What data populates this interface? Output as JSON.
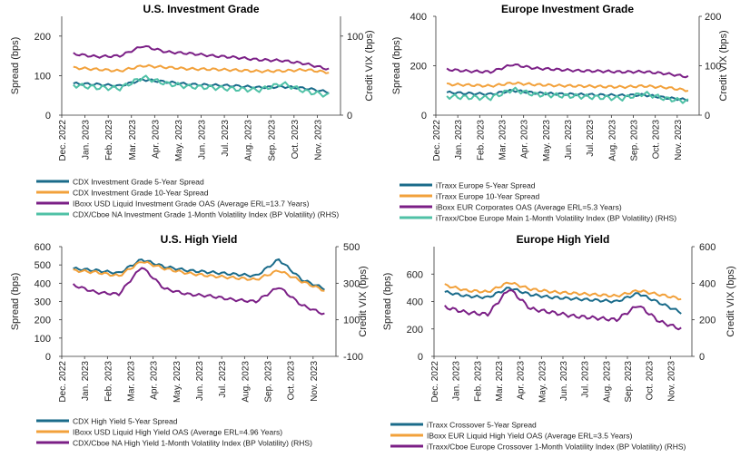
{
  "colors": {
    "teal_dark": "#1a6b8a",
    "orange": "#f2a13b",
    "purple": "#7b1f86",
    "teal_light": "#4fc1a6",
    "axis": "#333333"
  },
  "chart_data": [
    {
      "type": "line",
      "title": "U.S. Investment Grade",
      "ylabel": "Spread (bps)",
      "y2label": "Credit VIX (bps)",
      "ylim": [
        0,
        250
      ],
      "yticks": [
        0,
        100,
        200
      ],
      "y2lim": [
        0,
        125
      ],
      "y2ticks": [
        0,
        100
      ],
      "x": [
        "Dec. 2022",
        "Jan. 2023",
        "Feb. 2023",
        "Mar. 2023",
        "Apr. 2023",
        "May. 2023",
        "Jun. 2023",
        "Jul. 2023",
        "Aug. 2023",
        "Sep. 2023",
        "Oct. 2023",
        "Nov. 2023"
      ],
      "legend_position": "below",
      "series": [
        {
          "name": "CDX Investment Grade 5-Year Spread",
          "color": "teal_dark",
          "axis": "left",
          "values": [
            80,
            78,
            74,
            90,
            84,
            78,
            76,
            74,
            70,
            72,
            68,
            58
          ]
        },
        {
          "name": "CDX Investment Grade 10-Year Spread",
          "color": "orange",
          "axis": "left",
          "values": [
            120,
            116,
            112,
            125,
            121,
            117,
            116,
            114,
            111,
            112,
            115,
            108
          ]
        },
        {
          "name": "IBoxx USD Liquid Investment Grade OAS (Average ERL=13.7 Years)",
          "color": "purple",
          "axis": "left",
          "values": [
            155,
            148,
            150,
            175,
            160,
            156,
            150,
            146,
            140,
            138,
            130,
            116
          ]
        },
        {
          "name": "CDX/Cboe NA Investment Grade 1-Month Volatility Index (BP Volatility) (RHS)",
          "color": "teal_light",
          "axis": "right",
          "values": [
            38,
            35,
            34,
            48,
            40,
            36,
            35,
            33,
            32,
            40,
            30,
            25
          ]
        }
      ]
    },
    {
      "type": "line",
      "title": "Europe Investment Grade",
      "ylabel": "Spread (bps)",
      "y2label": "Credit VIX (bps)",
      "ylim": [
        0,
        400
      ],
      "yticks": [
        0,
        200,
        400
      ],
      "y2lim": [
        0,
        200
      ],
      "y2ticks": [
        0,
        100,
        200
      ],
      "x": [
        "Dec. 2022",
        "Jan. 2023",
        "Feb. 2023",
        "Mar. 2023",
        "Apr. 2023",
        "May. 2023",
        "Jun. 2023",
        "Jul. 2023",
        "Aug. 2023",
        "Sep. 2023",
        "Oct. 2023",
        "Nov. 2023"
      ],
      "legend_position": "below",
      "series": [
        {
          "name": "iTraxx Europe 5-Year Spread",
          "color": "teal_dark",
          "axis": "left",
          "values": [
            92,
            88,
            85,
            100,
            90,
            86,
            84,
            82,
            80,
            82,
            70,
            62
          ]
        },
        {
          "name": "iTraxx Europe 10-Year Spread",
          "color": "orange",
          "axis": "left",
          "values": [
            125,
            122,
            118,
            130,
            124,
            120,
            118,
            116,
            114,
            118,
            112,
            100
          ]
        },
        {
          "name": "iBoxx EUR Corporates OAS (Average ERL=5.3 Years)",
          "color": "purple",
          "axis": "left",
          "values": [
            185,
            178,
            175,
            205,
            190,
            185,
            180,
            178,
            175,
            176,
            168,
            155
          ]
        },
        {
          "name": "iTraxx/Cboe Europe Main 1-Month Volatility Index (BP Volatility) (RHS)",
          "color": "teal_light",
          "axis": "right",
          "values": [
            38,
            36,
            35,
            52,
            42,
            40,
            38,
            36,
            34,
            44,
            33,
            28
          ]
        }
      ]
    },
    {
      "type": "line",
      "title": "U.S. High Yield",
      "ylabel": "Spread (bps)",
      "y2label": "Credit VIX (bps)",
      "ylim": [
        0,
        600
      ],
      "yticks": [
        0,
        100,
        200,
        300,
        400,
        500,
        600
      ],
      "y2lim": [
        -100,
        500
      ],
      "y2ticks": [
        -100,
        100,
        300,
        500
      ],
      "x": [
        "Dec. 2022",
        "Jan. 2023",
        "Feb. 2023",
        "Mar. 2023",
        "Apr. 2023",
        "May. 2023",
        "Jun. 2023",
        "Jul. 2023",
        "Aug. 2023",
        "Sep. 2023",
        "Oct. 2023",
        "Nov. 2023"
      ],
      "legend_position": "below",
      "series": [
        {
          "name": "CDX High Yield 5-Year Spread",
          "color": "teal_dark",
          "axis": "left",
          "values": [
            480,
            470,
            455,
            530,
            490,
            470,
            460,
            450,
            440,
            530,
            420,
            370
          ]
        },
        {
          "name": "IBoxx USD Liquid High Yield OAS (Average ERL=4.96 Years)",
          "color": "orange",
          "axis": "left",
          "values": [
            470,
            460,
            440,
            520,
            480,
            455,
            440,
            430,
            420,
            470,
            410,
            360
          ]
        },
        {
          "name": "CDX/Cboe NA High Yield 1-Month Volatility Index (BP Volatility) (RHS)",
          "color": "purple",
          "axis": "right",
          "values": [
            290,
            250,
            240,
            390,
            270,
            240,
            230,
            210,
            200,
            280,
            180,
            130
          ]
        }
      ]
    },
    {
      "type": "line",
      "title": "Europe High Yield",
      "ylabel": "Spread (bps)",
      "y2label": "Credit VIX (bps)",
      "ylim": [
        0,
        800
      ],
      "yticks": [
        0,
        200,
        400,
        600
      ],
      "y2lim": [
        0,
        600
      ],
      "y2ticks": [
        0,
        200,
        400,
        600
      ],
      "x": [
        "Dec. 2022",
        "Jan. 2023",
        "Feb. 2023",
        "Mar. 2023",
        "Apr. 2023",
        "May. 2023",
        "Jun. 2023",
        "Jul. 2023",
        "Aug. 2023",
        "Sep. 2023",
        "Oct. 2023",
        "Nov. 2023"
      ],
      "legend_position": "below",
      "series": [
        {
          "name": "iTraxx Crossover 5-Year Spread",
          "color": "teal_dark",
          "axis": "left",
          "values": [
            470,
            440,
            430,
            500,
            450,
            430,
            420,
            410,
            400,
            460,
            390,
            320
          ]
        },
        {
          "name": "IBoxx EUR Liquid High Yield OAS (Average ERL=3.5 Years)",
          "color": "orange",
          "axis": "left",
          "values": [
            520,
            480,
            470,
            540,
            490,
            470,
            460,
            450,
            440,
            480,
            450,
            420
          ]
        },
        {
          "name": "iTraxx/Cboe Europe Crossover 1-Month Volatility Index (BP Volatility) (RHS)",
          "color": "purple",
          "axis": "right",
          "values": [
            270,
            240,
            230,
            370,
            260,
            240,
            220,
            210,
            200,
            280,
            190,
            150
          ]
        }
      ]
    }
  ]
}
